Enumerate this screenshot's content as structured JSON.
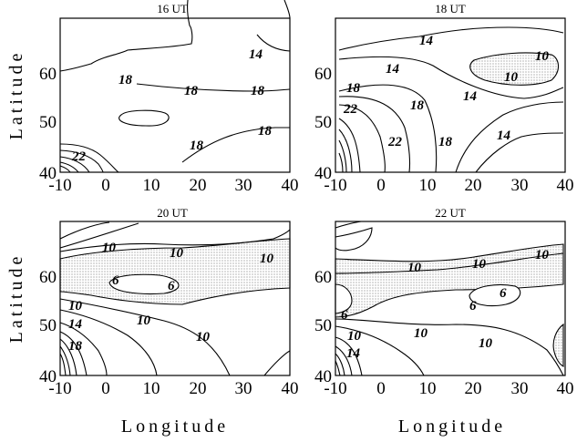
{
  "chart_data": [
    {
      "type": "contour",
      "title": "16 UT",
      "xlabel": "",
      "ylabel": "Latitude",
      "xlim": [
        -10,
        40
      ],
      "ylim": [
        39,
        69
      ],
      "x_ticks": [
        "-10",
        "0",
        "10",
        "20",
        "30",
        "40"
      ],
      "y_ticks": [
        "40",
        "50",
        "60"
      ],
      "contour_labels": [
        {
          "text": "14",
          "x": 33,
          "y": 64
        },
        {
          "text": "18",
          "x": 2,
          "y": 58
        },
        {
          "text": "18",
          "x": 19,
          "y": 56
        },
        {
          "text": "18",
          "x": 33,
          "y": 56
        },
        {
          "text": "18",
          "x": 19,
          "y": 44
        },
        {
          "text": "18",
          "x": 34,
          "y": 48
        },
        {
          "text": "22",
          "x": -4,
          "y": 42
        }
      ]
    },
    {
      "type": "contour",
      "title": "18 UT",
      "xlabel": "",
      "ylabel": "",
      "xlim": [
        -10,
        40
      ],
      "ylim": [
        39,
        69
      ],
      "x_ticks": [
        "-10",
        "0",
        "10",
        "20",
        "30",
        "40"
      ],
      "y_ticks": [
        "40",
        "50",
        "60"
      ],
      "shaded_below": 10,
      "contour_labels": [
        {
          "text": "14",
          "x": 9,
          "y": 66
        },
        {
          "text": "14",
          "x": 3,
          "y": 62
        },
        {
          "text": "10",
          "x": 37,
          "y": 65
        },
        {
          "text": "10",
          "x": 29,
          "y": 59
        },
        {
          "text": "18",
          "x": -6,
          "y": 57
        },
        {
          "text": "18",
          "x": 8,
          "y": 54
        },
        {
          "text": "14",
          "x": 19,
          "y": 54
        },
        {
          "text": "22",
          "x": -6,
          "y": 53
        },
        {
          "text": "22",
          "x": 5,
          "y": 46
        },
        {
          "text": "18",
          "x": 15,
          "y": 47
        },
        {
          "text": "14",
          "x": 28,
          "y": 47
        }
      ]
    },
    {
      "type": "contour",
      "title": "20 UT",
      "xlabel": "Longitude",
      "ylabel": "Latitude",
      "xlim": [
        -10,
        40
      ],
      "ylim": [
        39,
        69
      ],
      "x_ticks": [
        "-10",
        "0",
        "10",
        "20",
        "30",
        "40"
      ],
      "y_ticks": [
        "40",
        "50",
        "60"
      ],
      "shaded_below": 10,
      "contour_labels": [
        {
          "text": "10",
          "x": 7,
          "y": 66
        },
        {
          "text": "10",
          "x": 21,
          "y": 65
        },
        {
          "text": "10",
          "x": 34,
          "y": 64
        },
        {
          "text": "6",
          "x": 6,
          "y": 58
        },
        {
          "text": "6",
          "x": 15,
          "y": 57
        },
        {
          "text": "10",
          "x": -6,
          "y": 54
        },
        {
          "text": "14",
          "x": -6,
          "y": 50
        },
        {
          "text": "10",
          "x": 10,
          "y": 51
        },
        {
          "text": "18",
          "x": -6,
          "y": 45
        },
        {
          "text": "10",
          "x": 26,
          "y": 47
        }
      ]
    },
    {
      "type": "contour",
      "title": "22 UT",
      "xlabel": "Longitude",
      "ylabel": "",
      "xlim": [
        -10,
        40
      ],
      "ylim": [
        39,
        69
      ],
      "x_ticks": [
        "-10",
        "0",
        "10",
        "20",
        "30",
        "40"
      ],
      "y_ticks": [
        "40",
        "50",
        "60"
      ],
      "shaded_below": 10,
      "contour_labels": [
        {
          "text": "10",
          "x": 8,
          "y": 62
        },
        {
          "text": "10",
          "x": 23,
          "y": 63
        },
        {
          "text": "10",
          "x": 37,
          "y": 65
        },
        {
          "text": "6",
          "x": -7,
          "y": 51
        },
        {
          "text": "6",
          "x": 26,
          "y": 56
        },
        {
          "text": "6",
          "x": 20,
          "y": 53
        },
        {
          "text": "10",
          "x": -6,
          "y": 46
        },
        {
          "text": "10",
          "x": 10,
          "y": 47
        },
        {
          "text": "10",
          "x": 26,
          "y": 46
        },
        {
          "text": "14",
          "x": -6,
          "y": 43
        }
      ]
    }
  ]
}
